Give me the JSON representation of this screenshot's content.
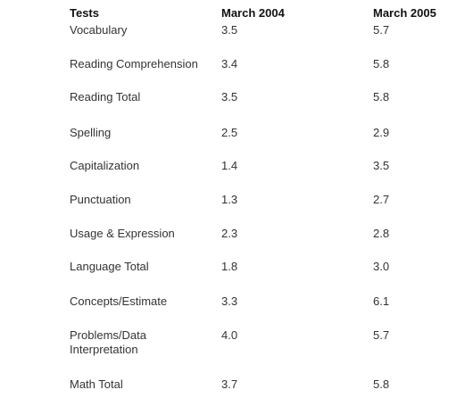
{
  "table": {
    "headers": {
      "tests": "Tests",
      "year1": "March 2004",
      "year2": "March 2005"
    },
    "rows": [
      {
        "test": "Vocabulary",
        "year1": "3.5",
        "year2": "5.7"
      },
      {
        "test": "Reading Comprehension",
        "year1": "3.4",
        "year2": "5.8"
      },
      {
        "test": "Reading Total",
        "year1": "3.5",
        "year2": "5.8"
      },
      {
        "test": "Spelling",
        "year1": "2.5",
        "year2": "2.9"
      },
      {
        "test": "Capitalization",
        "year1": "1.4",
        "year2": "3.5"
      },
      {
        "test": "Punctuation",
        "year1": "1.3",
        "year2": "2.7"
      },
      {
        "test": "Usage & Expression",
        "year1": "2.3",
        "year2": "2.8"
      },
      {
        "test": "Language Total",
        "year1": "1.8",
        "year2": "3.0"
      },
      {
        "test": "Concepts/Estimate",
        "year1": "3.3",
        "year2": "6.1"
      },
      {
        "test": "Problems/Data Interpretation",
        "year1": "4.0",
        "year2": "5.7"
      },
      {
        "test": "Math Total",
        "year1": "3.7",
        "year2": "5.8"
      }
    ]
  }
}
